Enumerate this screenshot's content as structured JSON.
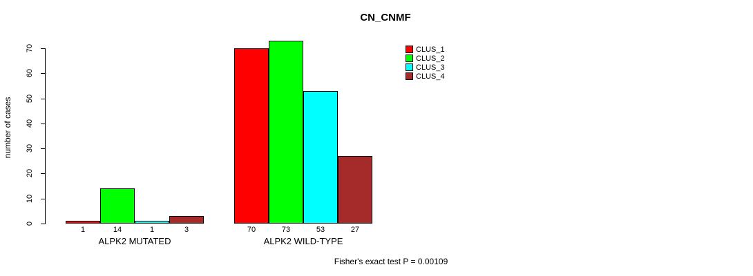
{
  "chart_data": {
    "type": "bar",
    "title": "CN_CNMF",
    "ylabel": "number of cases",
    "xlabel": "",
    "categories": [
      "ALPK2 MUTATED",
      "ALPK2 WILD-TYPE"
    ],
    "series": [
      {
        "name": "CLUS_1",
        "color": "#FF0000",
        "values": [
          1,
          70
        ]
      },
      {
        "name": "CLUS_2",
        "color": "#00FF00",
        "values": [
          14,
          73
        ]
      },
      {
        "name": "CLUS_3",
        "color": "#00FFFF",
        "values": [
          1,
          53
        ]
      },
      {
        "name": "CLUS_4",
        "color": "#A52A2A",
        "values": [
          3,
          27
        ]
      }
    ],
    "bar_value_labels": [
      [
        1,
        14,
        1,
        3
      ],
      [
        70,
        73,
        53,
        27
      ]
    ],
    "ylim": [
      0,
      70
    ],
    "yticks": [
      0,
      10,
      20,
      30,
      40,
      50,
      60,
      70
    ],
    "grid": false,
    "legend_position": "top-right",
    "legend_entries": [
      "CLUS_1",
      "CLUS_2",
      "CLUS_3",
      "CLUS_4"
    ],
    "annotation": "Fisher's exact test P = 0.00109",
    "axis_color": "#000000",
    "bar_border_color": "#000000"
  }
}
